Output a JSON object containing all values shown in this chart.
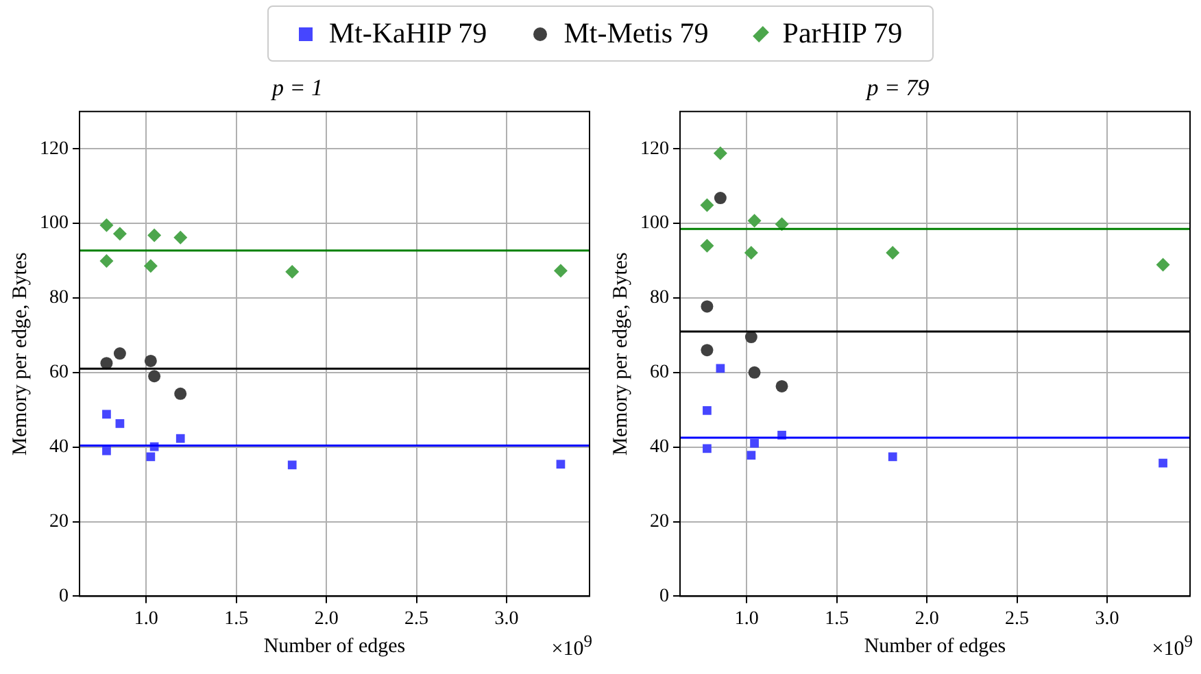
{
  "chart_data": [
    {
      "type": "scatter",
      "title": "p = 1",
      "xlabel": "Number of edges",
      "ylabel": "Memory per edge, Bytes",
      "annotations": [
        "×10$^{9}$"
      ],
      "xlim": [
        0.63,
        3.46
      ],
      "xticks": [
        {
          "value": 1,
          "label": "1.0"
        },
        {
          "value": 1.5,
          "label": "1.5"
        },
        {
          "value": 2,
          "label": "2.0"
        },
        {
          "value": 2.5,
          "label": "2.5"
        },
        {
          "value": 3,
          "label": "3.0"
        }
      ],
      "ylim": [
        0,
        130
      ],
      "yticks": [
        0,
        20,
        40,
        60,
        80,
        100,
        120
      ],
      "grid": true,
      "legend": "top",
      "series": [
        {
          "name": "Mt-KaHIP 79",
          "color": "#4646ff",
          "marker": "square",
          "x": [
            0.78,
            0.78,
            0.854,
            1.025,
            1.045,
            1.19,
            1.81,
            3.3
          ],
          "values": [
            48.8,
            39.0,
            46.3,
            37.4,
            40.1,
            42.3,
            35.2,
            35.4
          ]
        },
        {
          "name": "Mt-Metis 79",
          "color": "#404040",
          "marker": "circle",
          "x": [
            0.78,
            0.854,
            1.025,
            1.045,
            1.19
          ],
          "values": [
            62.5,
            65.1,
            63.1,
            59.0,
            54.3
          ]
        },
        {
          "name": "ParHIP 79",
          "color": "#4ca64c",
          "marker": "diamond",
          "x": [
            0.78,
            0.78,
            0.854,
            1.045,
            1.025,
            1.19,
            1.81,
            3.3
          ],
          "values": [
            99.5,
            89.9,
            97.2,
            96.8,
            88.6,
            96.2,
            87.0,
            87.3
          ]
        }
      ],
      "ref_lines": [
        {
          "axis": "y",
          "value": 40.4,
          "color": "#0000ff"
        },
        {
          "axis": "y",
          "value": 61.0,
          "color": "#000000"
        },
        {
          "axis": "y",
          "value": 92.7,
          "color": "#008000"
        }
      ]
    },
    {
      "type": "scatter",
      "title": "p = 79",
      "xlabel": "Number of edges",
      "ylabel": "Memory per edge, Bytes",
      "annotations": [
        "×10$^{9}$"
      ],
      "xlim": [
        0.63,
        3.46
      ],
      "xticks": [
        {
          "value": 1,
          "label": "1.0"
        },
        {
          "value": 1.5,
          "label": "1.5"
        },
        {
          "value": 2,
          "label": "2.0"
        },
        {
          "value": 2.5,
          "label": "2.5"
        },
        {
          "value": 3,
          "label": "3.0"
        }
      ],
      "ylim": [
        0,
        130
      ],
      "yticks": [
        0,
        20,
        40,
        60,
        80,
        100,
        120
      ],
      "grid": true,
      "series": [
        {
          "color": "#4646ff",
          "marker": "square",
          "x": [
            0.78,
            0.78,
            0.854,
            1.025,
            1.043,
            1.195,
            1.81,
            3.31
          ],
          "values": [
            49.8,
            39.6,
            61.1,
            37.8,
            41.0,
            43.2,
            37.4,
            35.7
          ]
        },
        {
          "color": "#404040",
          "marker": "circle",
          "x": [
            0.78,
            0.78,
            0.854,
            1.025,
            1.043,
            1.195
          ],
          "values": [
            77.7,
            66.0,
            106.8,
            69.5,
            60.0,
            56.3
          ]
        },
        {
          "color": "#4ca64c",
          "marker": "diamond",
          "x": [
            0.78,
            0.78,
            0.854,
            1.043,
            1.025,
            1.195,
            1.81,
            3.31
          ],
          "values": [
            104.9,
            94.0,
            118.8,
            100.7,
            92.1,
            99.8,
            92.1,
            88.9
          ]
        }
      ],
      "ref_lines": [
        {
          "axis": "y",
          "value": 42.5,
          "color": "#0000ff"
        },
        {
          "axis": "y",
          "value": 71.0,
          "color": "#000000"
        },
        {
          "axis": "y",
          "value": 98.5,
          "color": "#008000"
        }
      ]
    }
  ]
}
